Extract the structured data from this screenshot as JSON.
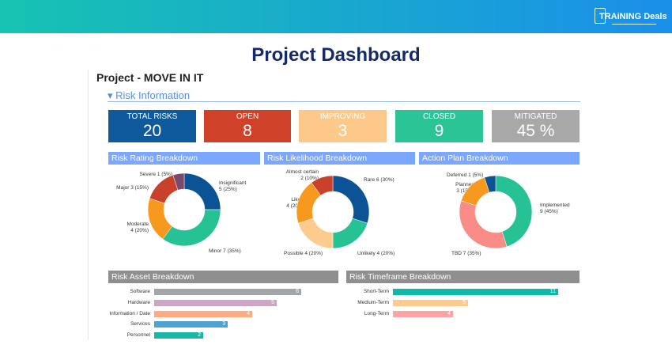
{
  "header": {
    "logo_text": "TRAiNING Deals",
    "gradient": [
      "#17c3b2",
      "#1a8fea"
    ]
  },
  "page_title": "Project Dashboard",
  "project_title": "Project - MOVE IN IT",
  "section_title": "Risk Information",
  "kpis": [
    {
      "label": "TOTAL RISKS",
      "value": "20",
      "color": "#0e5a9c"
    },
    {
      "label": "OPEN",
      "value": "8",
      "color": "#d0412a"
    },
    {
      "label": "IMPROVING",
      "value": "3",
      "color": "#fdc98a"
    },
    {
      "label": "CLOSED",
      "value": "9",
      "color": "#2bc497"
    },
    {
      "label": "MITIGATED",
      "value": "45 %",
      "color": "#a8a8a8"
    }
  ],
  "chart_data": [
    {
      "type": "pie",
      "title": "Risk Rating Breakdown",
      "categories": [
        "Insignificant",
        "Minor",
        "Moderate",
        "Major",
        "Severe"
      ],
      "values": [
        5,
        7,
        4,
        3,
        1
      ],
      "colors": [
        "#0b5394",
        "#26c295",
        "#f7991e",
        "#c9412a",
        "#7a4a6e"
      ],
      "labels": [
        "Insignificant\n5 (25%)",
        "Minor 7 (35%)",
        "Moderate\n4 (20%)",
        "Major 3 (15%)",
        "Severe 1 (5%)"
      ]
    },
    {
      "type": "pie",
      "title": "Risk Likelihood Breakdown",
      "categories": [
        "Rare",
        "Unlikely",
        "Possible",
        "Likely",
        "Almost certain"
      ],
      "values": [
        6,
        4,
        4,
        4,
        2
      ],
      "colors": [
        "#0b5394",
        "#26c295",
        "#fdcb8e",
        "#f7991e",
        "#c9412a"
      ],
      "labels": [
        "Rare 6 (30%)",
        "Unlikely 4 (20%)",
        "Possible 4 (20%)",
        "Likely\n4 (20%)",
        "Almost certain\n2 (10%)"
      ]
    },
    {
      "type": "pie",
      "title": "Action Plan Breakdown",
      "categories": [
        "Implemented",
        "TBD",
        "Planned",
        "Deferred"
      ],
      "values": [
        9,
        7,
        3,
        1
      ],
      "colors": [
        "#26c295",
        "#f98c87",
        "#f7991e",
        "#0b5394"
      ],
      "labels": [
        "Implemented\n9 (45%)",
        "TBD 7 (35%)",
        "Planned\n3 (15%)",
        "Deferred 1 (5%)"
      ]
    },
    {
      "type": "bar",
      "title": "Risk Asset Breakdown",
      "categories": [
        "Software",
        "Hardware",
        "Information / Date",
        "Services",
        "Personnel"
      ],
      "values": [
        6,
        5,
        4,
        3,
        2
      ],
      "colors": [
        "#a3a6a8",
        "#cba6c6",
        "#fdab80",
        "#4aa3d1",
        "#17b8a6"
      ]
    },
    {
      "type": "bar",
      "title": "Risk Timeframe Breakdown",
      "categories": [
        "Short-Term",
        "Medium-Term",
        "Long-Term"
      ],
      "values": [
        11,
        5,
        4
      ],
      "colors": [
        "#0fb8a8",
        "#fdcb8e",
        "#fda3a3"
      ]
    }
  ]
}
